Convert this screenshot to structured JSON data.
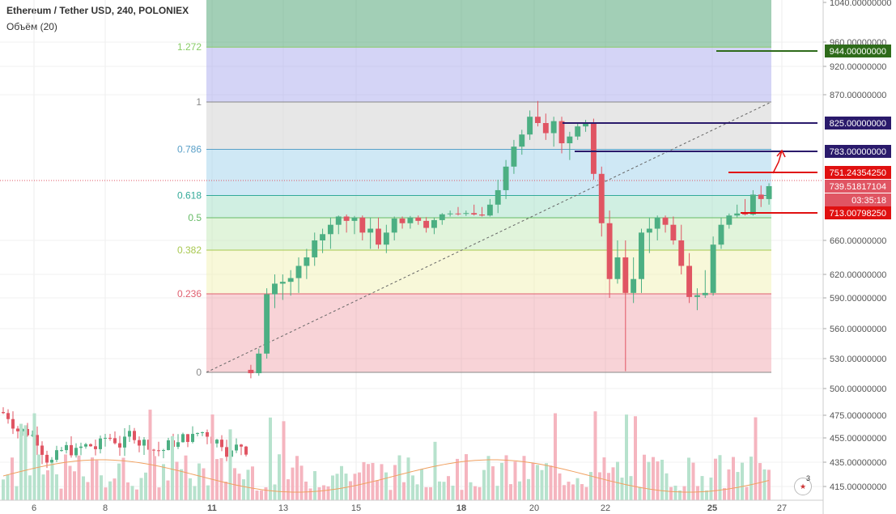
{
  "header": {
    "title": "Ethereum / Tether USD, 240, POLONIEX",
    "volume_label": "Объём (20)"
  },
  "colors": {
    "up": "#4caf83",
    "down": "#e05563",
    "vol_up": "#b7e2cd",
    "vol_down": "#f5b5bf",
    "vol_ma": "#f0a060",
    "trend_line": "#666666"
  },
  "fib_levels": [
    {
      "label": "0",
      "price": 519.0,
      "color": "#888888",
      "fill": "rgba(235,130,140,0.35)"
    },
    {
      "label": "0.236",
      "price": 599.0,
      "color": "#e06070",
      "fill": "rgba(240,240,170,0.45)"
    },
    {
      "label": "0.382",
      "price": 648.5,
      "color": "#a8c850",
      "fill": "rgba(200,235,190,0.55)"
    },
    {
      "label": "0.5",
      "price": 689.0,
      "color": "#66bb66",
      "fill": "rgba(150,220,190,0.45)"
    },
    {
      "label": "0.618",
      "price": 729.0,
      "color": "#33aa99",
      "fill": "rgba(160,210,235,0.5)"
    },
    {
      "label": "0.786",
      "price": 786.0,
      "color": "#5aa0c8",
      "fill": "rgba(215,215,215,0.6)"
    },
    {
      "label": "1",
      "price": 858.5,
      "color": "#888888",
      "fill": "rgba(160,160,235,0.45)"
    },
    {
      "label": "1.272",
      "price": 951.0,
      "color": "#88cc66",
      "fill": "rgba(70,160,110,0.5)"
    }
  ],
  "price_axis": {
    "ticks": [
      "415.00000000",
      "435.00000000",
      "455.00000000",
      "475.00000000",
      "500.00000000",
      "530.00000000",
      "560.00000000",
      "590.00000000",
      "620.00000000",
      "660.00000000",
      "870.00000000",
      "920.00000000",
      "960.00000000",
      "1040.00000000"
    ]
  },
  "time_axis": {
    "ticks": [
      {
        "label": "6",
        "bold": false
      },
      {
        "label": "8",
        "bold": false
      },
      {
        "label": "11",
        "bold": true
      },
      {
        "label": "13",
        "bold": false
      },
      {
        "label": "15",
        "bold": false
      },
      {
        "label": "18",
        "bold": true
      },
      {
        "label": "20",
        "bold": false
      },
      {
        "label": "22",
        "bold": false
      },
      {
        "label": "25",
        "bold": true
      },
      {
        "label": "27",
        "bold": false
      }
    ]
  },
  "price_tags": [
    {
      "text": "944.00000000",
      "price": 944,
      "bg": "#2e6b1a",
      "line": "#2e6b1a"
    },
    {
      "text": "825.00000000",
      "price": 825,
      "bg": "#2a1a6b",
      "line": "#2a1a6b"
    },
    {
      "text": "783.00000000",
      "price": 783,
      "bg": "#2a1a6b",
      "line": "#2a1a6b"
    },
    {
      "text": "751.24354250",
      "price": 751.24,
      "bg": "#e01010",
      "line": "#e01010"
    },
    {
      "text": "739.51817104",
      "price": 739.5,
      "bg": "#e05563",
      "line": "none"
    },
    {
      "text": "03:35:18",
      "price": 724.0,
      "bg": "#e05563",
      "line": "none"
    },
    {
      "text": "713.00798250",
      "price": 713.0,
      "bg": "#e01010",
      "line": "#e01010"
    }
  ],
  "chart_data": {
    "type": "candlestick",
    "title": "Ethereum / Tether USD, 240, POLONIEX",
    "ylim": [
      400,
      1060
    ],
    "candles_price_region": [
      [
        521,
        525,
        512,
        518
      ],
      [
        518,
        540,
        515,
        535
      ],
      [
        535,
        605,
        530,
        598
      ],
      [
        598,
        620,
        580,
        610
      ],
      [
        610,
        620,
        588,
        612
      ],
      [
        612,
        625,
        595,
        616
      ],
      [
        616,
        640,
        600,
        630
      ],
      [
        630,
        650,
        615,
        640
      ],
      [
        640,
        670,
        630,
        660
      ],
      [
        660,
        675,
        645,
        668
      ],
      [
        668,
        690,
        650,
        680
      ],
      [
        680,
        700,
        668,
        695
      ],
      [
        695,
        705,
        670,
        685
      ],
      [
        685,
        698,
        668,
        690
      ],
      [
        690,
        700,
        660,
        670
      ],
      [
        670,
        690,
        650,
        675
      ],
      [
        675,
        690,
        650,
        655
      ],
      [
        655,
        680,
        645,
        670
      ],
      [
        670,
        695,
        660,
        688
      ],
      [
        688,
        695,
        675,
        682
      ],
      [
        682,
        698,
        675,
        690
      ],
      [
        690,
        700,
        680,
        685
      ],
      [
        685,
        692,
        670,
        676
      ],
      [
        676,
        690,
        668,
        686
      ],
      [
        686,
        712,
        680,
        706
      ],
      [
        706,
        715,
        695,
        710
      ],
      [
        710,
        718,
        700,
        708
      ],
      [
        708,
        715,
        698,
        712
      ],
      [
        712,
        720,
        700,
        705
      ],
      [
        705,
        718,
        695,
        700
      ],
      [
        700,
        725,
        695,
        720
      ],
      [
        720,
        745,
        712,
        735
      ],
      [
        735,
        770,
        725,
        760
      ],
      [
        760,
        800,
        750,
        790
      ],
      [
        790,
        815,
        778,
        808
      ],
      [
        808,
        845,
        800,
        835
      ],
      [
        835,
        860,
        820,
        825
      ],
      [
        825,
        840,
        800,
        810
      ],
      [
        810,
        835,
        790,
        828
      ],
      [
        828,
        835,
        780,
        795
      ],
      [
        795,
        812,
        770,
        805
      ],
      [
        805,
        825,
        800,
        820
      ],
      [
        820,
        830,
        812,
        826
      ],
      [
        826,
        832,
        745,
        750
      ],
      [
        750,
        760,
        665,
        682
      ],
      [
        682,
        715,
        590,
        615
      ],
      [
        615,
        660,
        610,
        640
      ],
      [
        640,
        660,
        520,
        600
      ],
      [
        600,
        640,
        585,
        615
      ],
      [
        615,
        675,
        600,
        670
      ],
      [
        670,
        690,
        645,
        675
      ],
      [
        675,
        700,
        660,
        690
      ],
      [
        690,
        700,
        670,
        680
      ],
      [
        680,
        695,
        655,
        660
      ],
      [
        660,
        680,
        620,
        630
      ],
      [
        630,
        645,
        585,
        592
      ],
      [
        592,
        605,
        578,
        596
      ],
      [
        596,
        625,
        590,
        600
      ],
      [
        600,
        665,
        595,
        655
      ],
      [
        655,
        690,
        650,
        680
      ],
      [
        680,
        710,
        675,
        700
      ],
      [
        700,
        720,
        690,
        710
      ],
      [
        710,
        725,
        700,
        705
      ],
      [
        705,
        735,
        700,
        730
      ],
      [
        730,
        740,
        718,
        725
      ],
      [
        725,
        742,
        720,
        739.5
      ]
    ]
  }
}
